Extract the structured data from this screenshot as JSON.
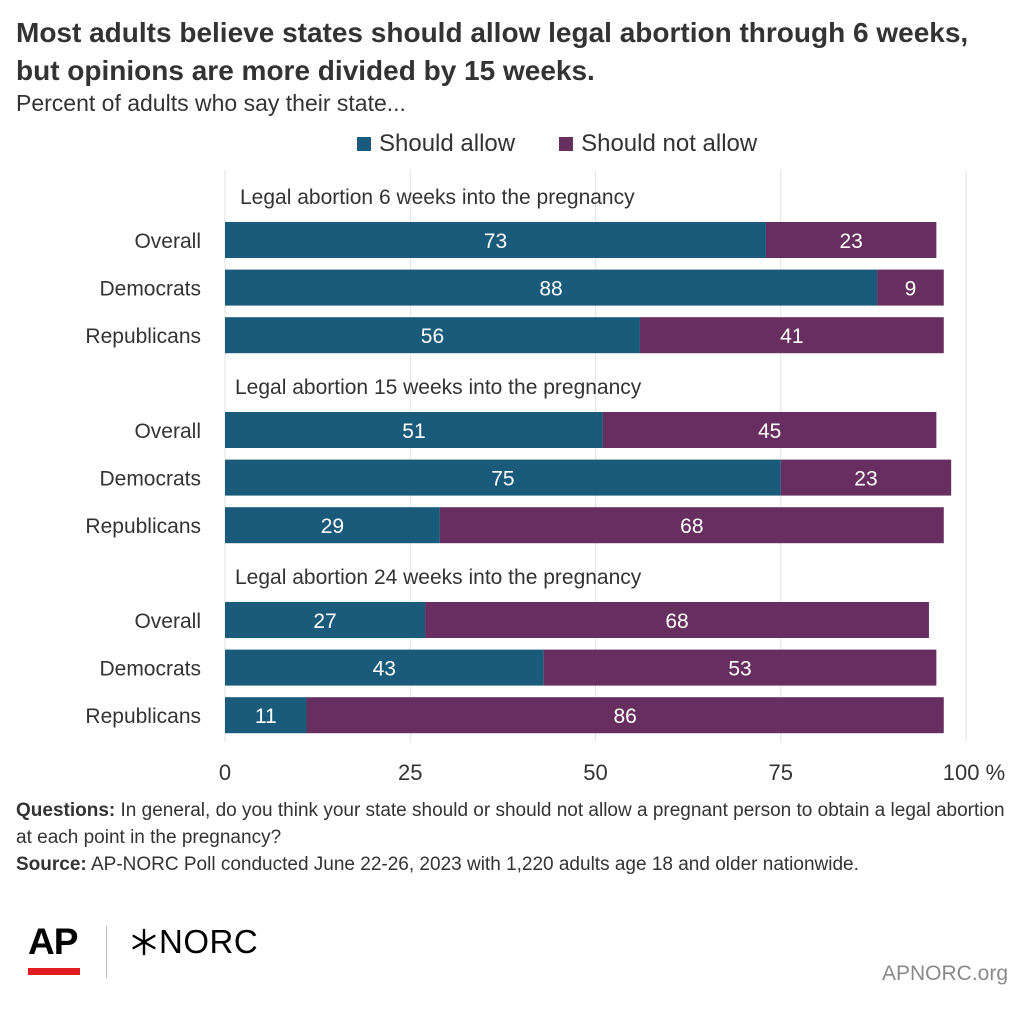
{
  "title": "Most adults believe states should allow legal abortion through 6 weeks, but opinions are more divided by 15 weeks.",
  "subtitle": "Percent of adults who say their state...",
  "legend": [
    {
      "label": "Should allow",
      "color": "#1a5a7a"
    },
    {
      "label": "Should not allow",
      "color": "#672f60"
    }
  ],
  "chart_data": {
    "type": "bar",
    "orientation": "horizontal",
    "stacked": true,
    "xlim": [
      0,
      100
    ],
    "xticks": [
      0,
      25,
      50,
      75,
      100
    ],
    "xtick_labels": [
      "0",
      "25",
      "50",
      "75",
      "100 %"
    ],
    "series_names": [
      "Should allow",
      "Should not allow"
    ],
    "colors": [
      "#1a5a7a",
      "#672f60"
    ],
    "groups": [
      {
        "label": "Legal abortion 6 weeks into the pregnancy",
        "rows": [
          {
            "category": "Overall",
            "values": [
              73,
              23
            ]
          },
          {
            "category": "Democrats",
            "values": [
              88,
              9
            ]
          },
          {
            "category": "Republicans",
            "values": [
              56,
              41
            ]
          }
        ]
      },
      {
        "label": "Legal abortion 15 weeks into the pregnancy",
        "rows": [
          {
            "category": "Overall",
            "values": [
              51,
              45
            ]
          },
          {
            "category": "Democrats",
            "values": [
              75,
              23
            ]
          },
          {
            "category": "Republicans",
            "values": [
              29,
              68
            ]
          }
        ]
      },
      {
        "label": "Legal abortion 24 weeks into the pregnancy",
        "rows": [
          {
            "category": "Overall",
            "values": [
              27,
              68
            ]
          },
          {
            "category": "Democrats",
            "values": [
              43,
              53
            ]
          },
          {
            "category": "Republicans",
            "values": [
              11,
              86
            ]
          }
        ]
      }
    ]
  },
  "notes": {
    "questions_label": "Questions:",
    "questions_text": "In general, do you think your state should or should not allow a pregnant person to obtain a legal abortion at each point in the pregnancy?",
    "source_label": "Source:",
    "source_text": "AP-NORC Poll conducted June 22-26, 2023 with 1,220 adults age 18 and older nationwide."
  },
  "logos": {
    "ap": "AP",
    "norc": "NORC"
  },
  "site": "APNORC.org"
}
